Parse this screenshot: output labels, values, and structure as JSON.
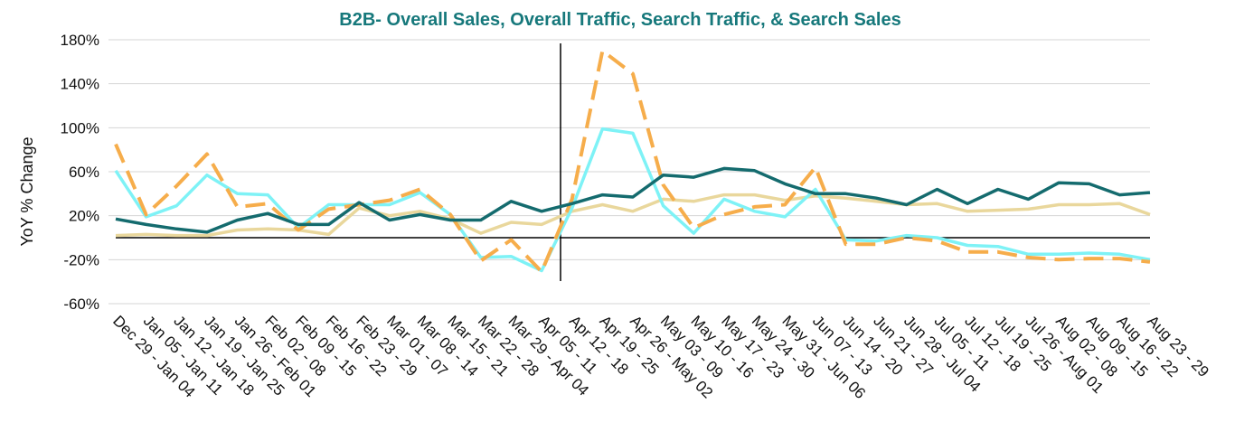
{
  "chart_data": {
    "type": "line",
    "title": "B2B- Overall Sales, Overall Traffic, Search Traffic, & Search Sales",
    "y_label": "YoY % Change",
    "categories": [
      "Dec 29 - Jan 04",
      "Jan 05 - Jan 11",
      "Jan 12 - Jan 18",
      "Jan 19 - Jan 25",
      "Jan 26 - Feb 01",
      "Feb 02 - 08",
      "Feb 09 - 15",
      "Feb 16 - 22",
      "Feb 23 - 29",
      "Mar 01 - 07",
      "Mar 08 - 14",
      "Mar 15 - 21",
      "Mar 22 - 28",
      "Mar 29 - Apr 04",
      "Apr 05 - 11",
      "Apr 12 - 18",
      "Apr 19 - 25",
      "Apr 26 - May 02",
      "May 03 - 09",
      "May 10 - 16",
      "May 17 - 23",
      "May 24 - 30",
      "May 31 - Jun 06",
      "Jun 07 - 13",
      "Jun 14 - 20",
      "Jun 21 - 27",
      "Jun 28 - Jul 04",
      "Jul 05 - 11",
      "Jul 12 - 18",
      "Jul 19 - 25",
      "Jul 26 - Aug 01",
      "Aug 02 - 08",
      "Aug 09 - 15",
      "Aug 16 - 22",
      "Aug 23 - 29"
    ],
    "series": [
      {
        "color": "#e9d79c",
        "dashed": false,
        "values": [
          2,
          3,
          2,
          2,
          7,
          8,
          7,
          3,
          27,
          20,
          24,
          17,
          4,
          14,
          12,
          24,
          30,
          24,
          35,
          33,
          39,
          39,
          34,
          38,
          36,
          33,
          30,
          31,
          24,
          25,
          26,
          30,
          30,
          31,
          21
        ]
      },
      {
        "color": "#7ef2f6",
        "dashed": false,
        "values": [
          61,
          19,
          29,
          57,
          40,
          39,
          9,
          30,
          30,
          30,
          41,
          21,
          -18,
          -17,
          -30,
          27,
          99,
          95,
          29,
          4,
          35,
          24,
          19,
          44,
          -2,
          -3,
          2,
          0,
          -7,
          -8,
          -15,
          -15,
          -14,
          -15,
          -20
        ]
      },
      {
        "color": "#f6ad4b",
        "dashed": true,
        "values": [
          85,
          21,
          47,
          76,
          28,
          31,
          7,
          26,
          30,
          34,
          44,
          21,
          -21,
          -2,
          -31,
          35,
          170,
          149,
          48,
          9,
          21,
          28,
          30,
          64,
          -6,
          -6,
          0,
          -3,
          -13,
          -13,
          -18,
          -20,
          -19,
          -19,
          -22
        ]
      },
      {
        "color": "#146b6e",
        "dashed": false,
        "values": [
          17,
          12,
          8,
          5,
          16,
          22,
          12,
          12,
          32,
          16,
          21,
          16,
          16,
          33,
          24,
          31,
          39,
          37,
          57,
          55,
          63,
          61,
          49,
          40,
          40,
          36,
          30,
          44,
          31,
          44,
          35,
          50,
          49,
          39,
          41
        ]
      }
    ],
    "ylim": [
      -60,
      180
    ],
    "yticks": [
      {
        "value": -60,
        "label": "-60%"
      },
      {
        "value": -20,
        "label": "-20%"
      },
      {
        "value": 20,
        "label": "20%"
      },
      {
        "value": 60,
        "label": "60%"
      },
      {
        "value": 100,
        "label": "100%"
      },
      {
        "value": 140,
        "label": "140%"
      },
      {
        "value": 180,
        "label": "180%"
      }
    ],
    "grid": true
  }
}
